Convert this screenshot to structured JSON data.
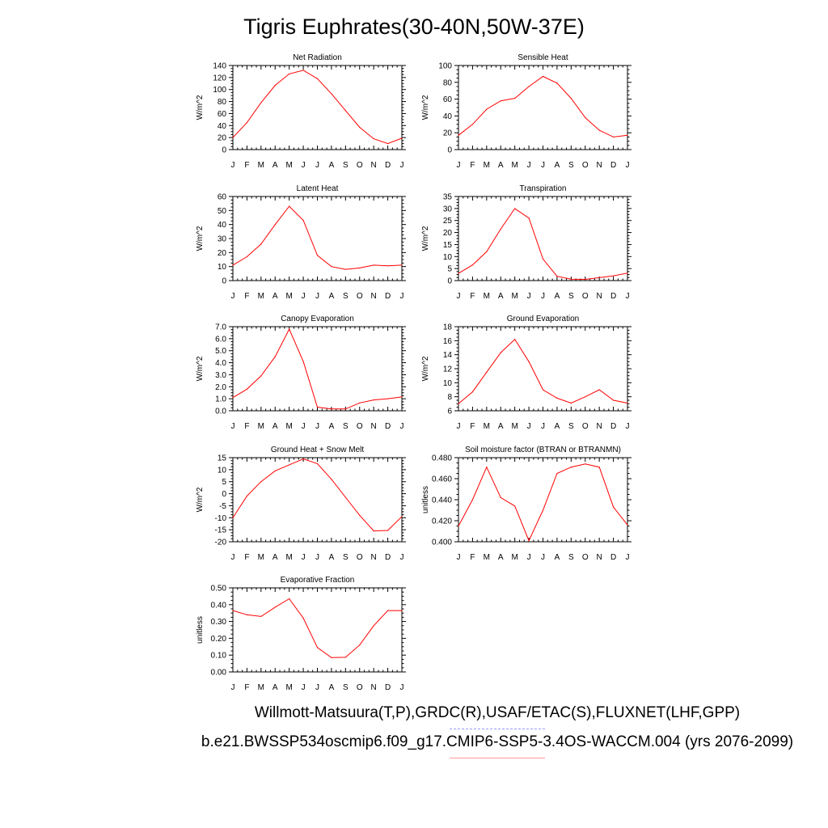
{
  "title": "Tigris Euphrates(30-40N,50W-37E)",
  "footer": {
    "obs_sources": "Willmott-Matsuura(T,P),GRDC(R),USAF/ETAC(S),FLUXNET(LHF,GPP)",
    "case_name": "b.e21.BWSSP534oscmip6.f09_g17.CMIP6-SSP5-3.4OS-WACCM.004 (yrs 2076-2099)"
  },
  "colors": {
    "line": "#ff0000",
    "axis": "#000000",
    "obs_dash": "#9999ff",
    "case_underline": "#ff9999"
  },
  "chart_data": [
    {
      "type": "line",
      "title": "Net Radiation",
      "ylabel": "W/m^2",
      "categories": [
        "J",
        "F",
        "M",
        "A",
        "M",
        "J",
        "J",
        "A",
        "S",
        "O",
        "N",
        "D",
        "J"
      ],
      "ylim": [
        0,
        140
      ],
      "yticks": [
        0,
        20,
        40,
        60,
        80,
        100,
        120,
        140
      ],
      "ytick_labels": [
        "0",
        "20",
        "40",
        "60",
        "80",
        "100",
        "120",
        "140"
      ],
      "values": [
        20,
        45,
        78,
        107,
        126,
        132,
        118,
        93,
        65,
        37,
        18,
        10,
        19
      ]
    },
    {
      "type": "line",
      "title": "Sensible Heat",
      "ylabel": "W/m^2",
      "categories": [
        "J",
        "F",
        "M",
        "A",
        "M",
        "J",
        "J",
        "A",
        "S",
        "O",
        "N",
        "D",
        "J"
      ],
      "ylim": [
        0,
        100
      ],
      "yticks": [
        0,
        20,
        40,
        60,
        80,
        100
      ],
      "ytick_labels": [
        "0",
        "20",
        "40",
        "60",
        "80",
        "100"
      ],
      "values": [
        17,
        30,
        48,
        58,
        61,
        75,
        87,
        79,
        61,
        38,
        23,
        15,
        17
      ]
    },
    {
      "type": "line",
      "title": "Latent Heat",
      "ylabel": "W/m^2",
      "categories": [
        "J",
        "F",
        "M",
        "A",
        "M",
        "J",
        "J",
        "A",
        "S",
        "O",
        "N",
        "D",
        "J"
      ],
      "ylim": [
        0,
        60
      ],
      "yticks": [
        0,
        10,
        20,
        30,
        40,
        50,
        60
      ],
      "ytick_labels": [
        "0",
        "10",
        "20",
        "30",
        "40",
        "50",
        "60"
      ],
      "values": [
        11,
        17,
        26,
        40,
        53,
        43,
        18,
        10,
        8,
        9,
        11,
        10.5,
        11
      ]
    },
    {
      "type": "line",
      "title": "Transpiration",
      "ylabel": "W/m^2",
      "categories": [
        "J",
        "F",
        "M",
        "A",
        "M",
        "J",
        "J",
        "A",
        "S",
        "O",
        "N",
        "D",
        "J"
      ],
      "ylim": [
        0,
        35
      ],
      "yticks": [
        0,
        5,
        10,
        15,
        20,
        25,
        30,
        35
      ],
      "ytick_labels": [
        "0",
        "5",
        "10",
        "15",
        "20",
        "25",
        "30",
        "35"
      ],
      "values": [
        3,
        6.5,
        12,
        21.5,
        30,
        26,
        9,
        1.8,
        0.6,
        0.5,
        1.2,
        2,
        3.1
      ]
    },
    {
      "type": "line",
      "title": "Canopy Evaporation",
      "ylabel": "W/m^2",
      "categories": [
        "J",
        "F",
        "M",
        "A",
        "M",
        "J",
        "J",
        "A",
        "S",
        "O",
        "N",
        "D",
        "J"
      ],
      "ylim": [
        0,
        7
      ],
      "yticks": [
        0,
        1,
        2,
        3,
        4,
        5,
        6,
        7
      ],
      "ytick_labels": [
        "0.0",
        "1.0",
        "2.0",
        "3.0",
        "4.0",
        "5.0",
        "6.0",
        "7.0"
      ],
      "values": [
        1.1,
        1.8,
        2.9,
        4.5,
        6.8,
        4.1,
        0.3,
        0.15,
        0.15,
        0.65,
        0.9,
        1.0,
        1.15
      ]
    },
    {
      "type": "line",
      "title": "Ground Evaporation",
      "ylabel": "W/m^2",
      "categories": [
        "J",
        "F",
        "M",
        "A",
        "M",
        "J",
        "J",
        "A",
        "S",
        "O",
        "N",
        "D",
        "J"
      ],
      "ylim": [
        6,
        18
      ],
      "yticks": [
        6,
        8,
        10,
        12,
        14,
        16,
        18
      ],
      "ytick_labels": [
        "6",
        "8",
        "10",
        "12",
        "14",
        "16",
        "18"
      ],
      "values": [
        7,
        8.7,
        11.5,
        14.3,
        16.2,
        13,
        9,
        7.8,
        7.1,
        8,
        9,
        7.5,
        7.1
      ]
    },
    {
      "type": "line",
      "title": "Ground Heat + Snow Melt",
      "ylabel": "W/m^2",
      "categories": [
        "J",
        "F",
        "M",
        "A",
        "M",
        "J",
        "J",
        "A",
        "S",
        "O",
        "N",
        "D",
        "J"
      ],
      "ylim": [
        -20,
        15
      ],
      "yticks": [
        -20,
        -15,
        -10,
        -5,
        0,
        5,
        10,
        15
      ],
      "ytick_labels": [
        "-20",
        "-15",
        "-10",
        "-5",
        "0",
        "5",
        "10",
        "15"
      ],
      "values": [
        -10,
        -1,
        5,
        9.5,
        12,
        14.5,
        12.5,
        6,
        -1.5,
        -9,
        -15.5,
        -15.3,
        -9.5
      ]
    },
    {
      "type": "line",
      "title": "Soil moisture factor (BTRAN or BTRANMN)",
      "ylabel": "unitless",
      "categories": [
        "J",
        "F",
        "M",
        "A",
        "M",
        "J",
        "J",
        "A",
        "S",
        "O",
        "N",
        "D",
        "J"
      ],
      "ylim": [
        0.4,
        0.48
      ],
      "yticks": [
        0.4,
        0.42,
        0.44,
        0.46,
        0.48
      ],
      "ytick_labels": [
        "0.400",
        "0.420",
        "0.440",
        "0.460",
        "0.480"
      ],
      "values": [
        0.415,
        0.44,
        0.471,
        0.442,
        0.434,
        0.401,
        0.43,
        0.465,
        0.471,
        0.474,
        0.471,
        0.433,
        0.416
      ]
    },
    {
      "type": "line",
      "title": "Evaporative Fraction",
      "ylabel": "unitless",
      "categories": [
        "J",
        "F",
        "M",
        "A",
        "M",
        "J",
        "J",
        "A",
        "S",
        "O",
        "N",
        "D",
        "J"
      ],
      "ylim": [
        0,
        0.5
      ],
      "yticks": [
        0,
        0.1,
        0.2,
        0.3,
        0.4,
        0.5
      ],
      "ytick_labels": [
        "0.00",
        "0.10",
        "0.20",
        "0.30",
        "0.40",
        "0.50"
      ],
      "values": [
        0.365,
        0.34,
        0.33,
        0.385,
        0.435,
        0.32,
        0.145,
        0.085,
        0.087,
        0.16,
        0.275,
        0.365,
        0.365
      ]
    }
  ]
}
